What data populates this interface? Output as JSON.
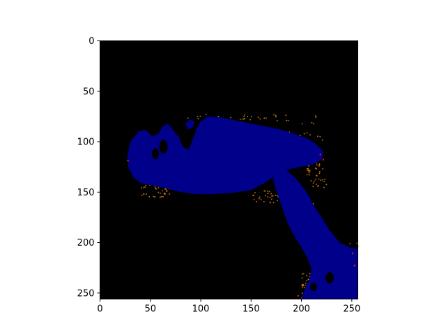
{
  "chart_data": {
    "type": "heatmap",
    "title": "",
    "xlabel": "",
    "ylabel": "",
    "xlim": [
      0,
      256
    ],
    "ylim": [
      256,
      0
    ],
    "x_ticks": [
      0,
      50,
      100,
      150,
      200,
      250
    ],
    "y_ticks": [
      0,
      50,
      100,
      150,
      200,
      250
    ],
    "x_tick_labels": [
      "0",
      "50",
      "100",
      "150",
      "200",
      "250"
    ],
    "y_tick_labels": [
      "0",
      "50",
      "100",
      "150",
      "200",
      "250"
    ],
    "y_inverted": true,
    "grid": false,
    "legend": "none",
    "colormap": [
      "#000000",
      "#00008b",
      "#d2691e",
      "#ff0000"
    ],
    "background_color": "#000000",
    "blob_color": "#00008b",
    "speckle_color": "#c87810",
    "accent_color": "#e01818",
    "regions": [
      {
        "name": "main-body",
        "description": "large blob",
        "value_class": "blue",
        "outline": [
          [
            27,
            115
          ],
          [
            30,
            100
          ],
          [
            38,
            90
          ],
          [
            45,
            88
          ],
          [
            52,
            95
          ],
          [
            58,
            92
          ],
          [
            62,
            85
          ],
          [
            68,
            82
          ],
          [
            72,
            88
          ],
          [
            78,
            95
          ],
          [
            82,
            105
          ],
          [
            88,
            108
          ],
          [
            93,
            95
          ],
          [
            97,
            85
          ],
          [
            100,
            80
          ],
          [
            107,
            75
          ],
          [
            120,
            76
          ],
          [
            140,
            80
          ],
          [
            160,
            84
          ],
          [
            180,
            88
          ],
          [
            195,
            93
          ],
          [
            208,
            98
          ],
          [
            215,
            103
          ],
          [
            222,
            110
          ],
          [
            220,
            118
          ],
          [
            210,
            123
          ],
          [
            198,
            125
          ],
          [
            185,
            128
          ],
          [
            175,
            133
          ],
          [
            165,
            140
          ],
          [
            150,
            148
          ],
          [
            130,
            151
          ],
          [
            110,
            152
          ],
          [
            95,
            152
          ],
          [
            80,
            150
          ],
          [
            65,
            146
          ],
          [
            50,
            143
          ],
          [
            40,
            141
          ],
          [
            33,
            135
          ],
          [
            28,
            125
          ]
        ]
      },
      {
        "name": "tail",
        "description": "diagonal extension",
        "value_class": "blue",
        "outline": [
          [
            172,
            133
          ],
          [
            185,
            128
          ],
          [
            195,
            137
          ],
          [
            205,
            150
          ],
          [
            212,
            163
          ],
          [
            220,
            175
          ],
          [
            228,
            188
          ],
          [
            238,
            200
          ],
          [
            248,
            205
          ],
          [
            256,
            206
          ],
          [
            256,
            256
          ],
          [
            200,
            256
          ],
          [
            204,
            245
          ],
          [
            208,
            236
          ],
          [
            210,
            226
          ],
          [
            206,
            215
          ],
          [
            200,
            205
          ],
          [
            192,
            192
          ],
          [
            186,
            180
          ],
          [
            180,
            163
          ],
          [
            175,
            148
          ],
          [
            172,
            138
          ]
        ]
      },
      {
        "name": "small-lobe",
        "description": "small blob",
        "value_class": "blue",
        "outline": [
          [
            85,
            82
          ],
          [
            89,
            78
          ],
          [
            94,
            80
          ],
          [
            92,
            86
          ],
          [
            87,
            88
          ]
        ]
      }
    ]
  }
}
